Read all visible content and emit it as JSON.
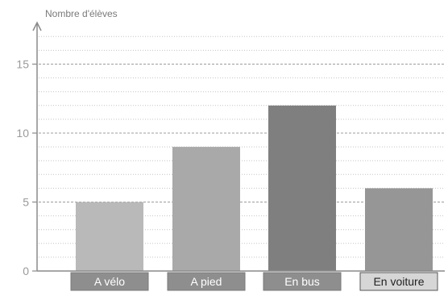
{
  "chart_data": {
    "type": "bar",
    "title": "",
    "xlabel": "",
    "ylabel": "Nombre d'élèves",
    "ylim": [
      0,
      17
    ],
    "yticks": [
      0,
      5,
      10,
      15
    ],
    "grid": true,
    "categories": [
      "A vélo",
      "A pied",
      "En bus",
      "En voiture"
    ],
    "values": [
      5,
      9,
      12,
      6
    ],
    "colors": [
      "#b9b9b9",
      "#a9a9a9",
      "#7f7f7f",
      "#969696"
    ]
  }
}
